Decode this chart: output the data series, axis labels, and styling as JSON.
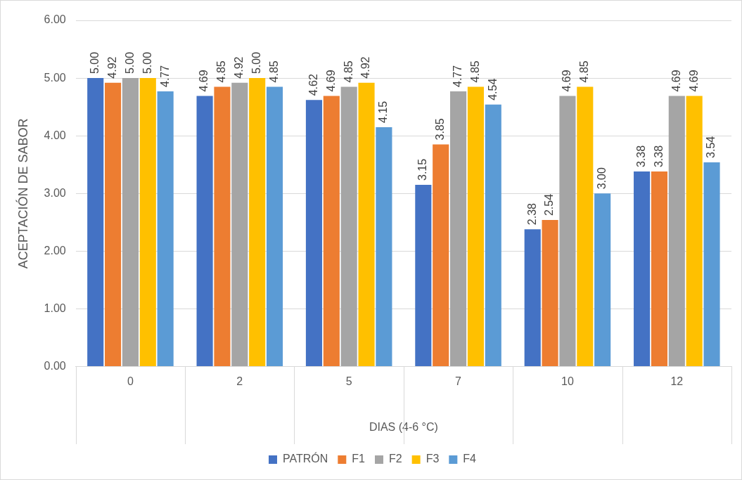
{
  "chart_data": {
    "type": "bar",
    "xlabel": "DIAS (4-6 °C)",
    "ylabel": "ACEPTACIÓN DE SABOR",
    "categories": [
      "0",
      "2",
      "5",
      "7",
      "10",
      "12"
    ],
    "series": [
      {
        "name": "PATRÓN",
        "color": "#4472c4",
        "values": [
          5.0,
          4.69,
          4.62,
          3.15,
          2.38,
          3.38
        ],
        "value_labels": [
          "5.00",
          "4.69",
          "4.62",
          "3.15",
          "2.38",
          "3.38"
        ]
      },
      {
        "name": "F1",
        "color": "#ed7d31",
        "values": [
          4.92,
          4.85,
          4.69,
          3.85,
          2.54,
          3.38
        ],
        "value_labels": [
          "4.92",
          "4.85",
          "4.69",
          "3.85",
          "2.54",
          "3.38"
        ]
      },
      {
        "name": "F2",
        "color": "#a5a5a5",
        "values": [
          5.0,
          4.92,
          4.85,
          4.77,
          4.69,
          4.69
        ],
        "value_labels": [
          "5.00",
          "4.92",
          "4.85",
          "4.77",
          "4.69",
          "4.69"
        ]
      },
      {
        "name": "F3",
        "color": "#ffc000",
        "values": [
          5.0,
          5.0,
          4.92,
          4.85,
          4.85,
          4.69
        ],
        "value_labels": [
          "5.00",
          "5.00",
          "4.92",
          "4.85",
          "4.85",
          "4.69"
        ]
      },
      {
        "name": "F4",
        "color": "#5b9bd5",
        "values": [
          4.77,
          4.85,
          4.15,
          4.54,
          3.0,
          3.54
        ],
        "value_labels": [
          "4.77",
          "4.85",
          "4.15",
          "4.54",
          "3.00",
          "3.54"
        ]
      }
    ],
    "ylim": [
      0,
      6
    ],
    "yticks": [
      {
        "value": 0,
        "label": "0.00"
      },
      {
        "value": 1,
        "label": "1.00"
      },
      {
        "value": 2,
        "label": "2.00"
      },
      {
        "value": 3,
        "label": "3.00"
      },
      {
        "value": 4,
        "label": "4.00"
      },
      {
        "value": 5,
        "label": "5.00"
      },
      {
        "value": 6,
        "label": "6.00"
      }
    ],
    "grid": "y",
    "legend": "bottom"
  }
}
